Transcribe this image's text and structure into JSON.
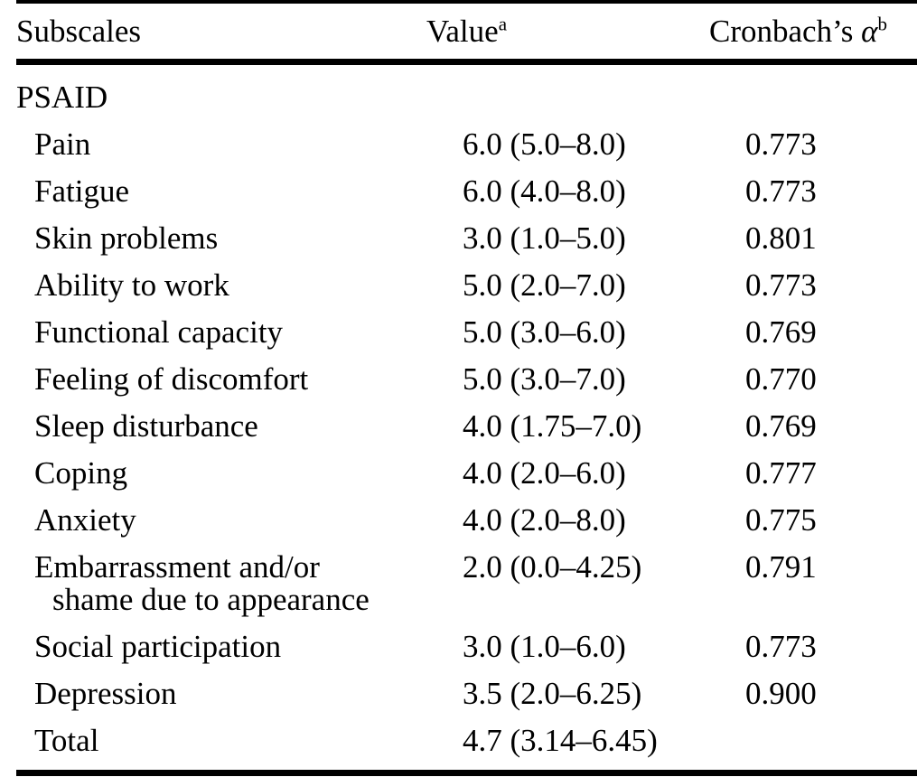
{
  "page": {
    "background": "#ffffff",
    "text_color": "#000000",
    "rule_color": "#000000"
  },
  "table": {
    "header": {
      "col1": "Subscales",
      "col2": {
        "text": "Value",
        "sup": "a"
      },
      "col3": {
        "text": "Cronbach’s",
        "symbol": "α",
        "sup": "b"
      }
    },
    "group": "PSAID",
    "rows": [
      {
        "label": "Pain",
        "value": "6.0 (5.0–8.0)",
        "alpha": "0.773"
      },
      {
        "label": "Fatigue",
        "value": "6.0 (4.0–8.0)",
        "alpha": "0.773"
      },
      {
        "label": "Skin problems",
        "value": "3.0 (1.0–5.0)",
        "alpha": "0.801"
      },
      {
        "label": "Ability to work",
        "value": "5.0 (2.0–7.0)",
        "alpha": "0.773"
      },
      {
        "label": "Functional capacity",
        "value": "5.0 (3.0–6.0)",
        "alpha": "0.769"
      },
      {
        "label": "Feeling of discomfort",
        "value": "5.0 (3.0–7.0)",
        "alpha": "0.770"
      },
      {
        "label": "Sleep disturbance",
        "value": "4.0 (1.75–7.0)",
        "alpha": "0.769"
      },
      {
        "label": "Coping",
        "value": "4.0 (2.0–6.0)",
        "alpha": "0.777"
      },
      {
        "label": "Anxiety",
        "value": "4.0 (2.0–8.0)",
        "alpha": "0.775"
      },
      {
        "label": "Embarrassment and/or\nshame due to appearance",
        "value": "2.0 (0.0–4.25)",
        "alpha": "0.791"
      },
      {
        "label": "Social participation",
        "value": "3.0 (1.0–6.0)",
        "alpha": "0.773"
      },
      {
        "label": "Depression",
        "value": "3.5 (2.0–6.25)",
        "alpha": "0.900"
      },
      {
        "label": "Total",
        "value": "4.7 (3.14–6.45)",
        "alpha": ""
      }
    ]
  }
}
